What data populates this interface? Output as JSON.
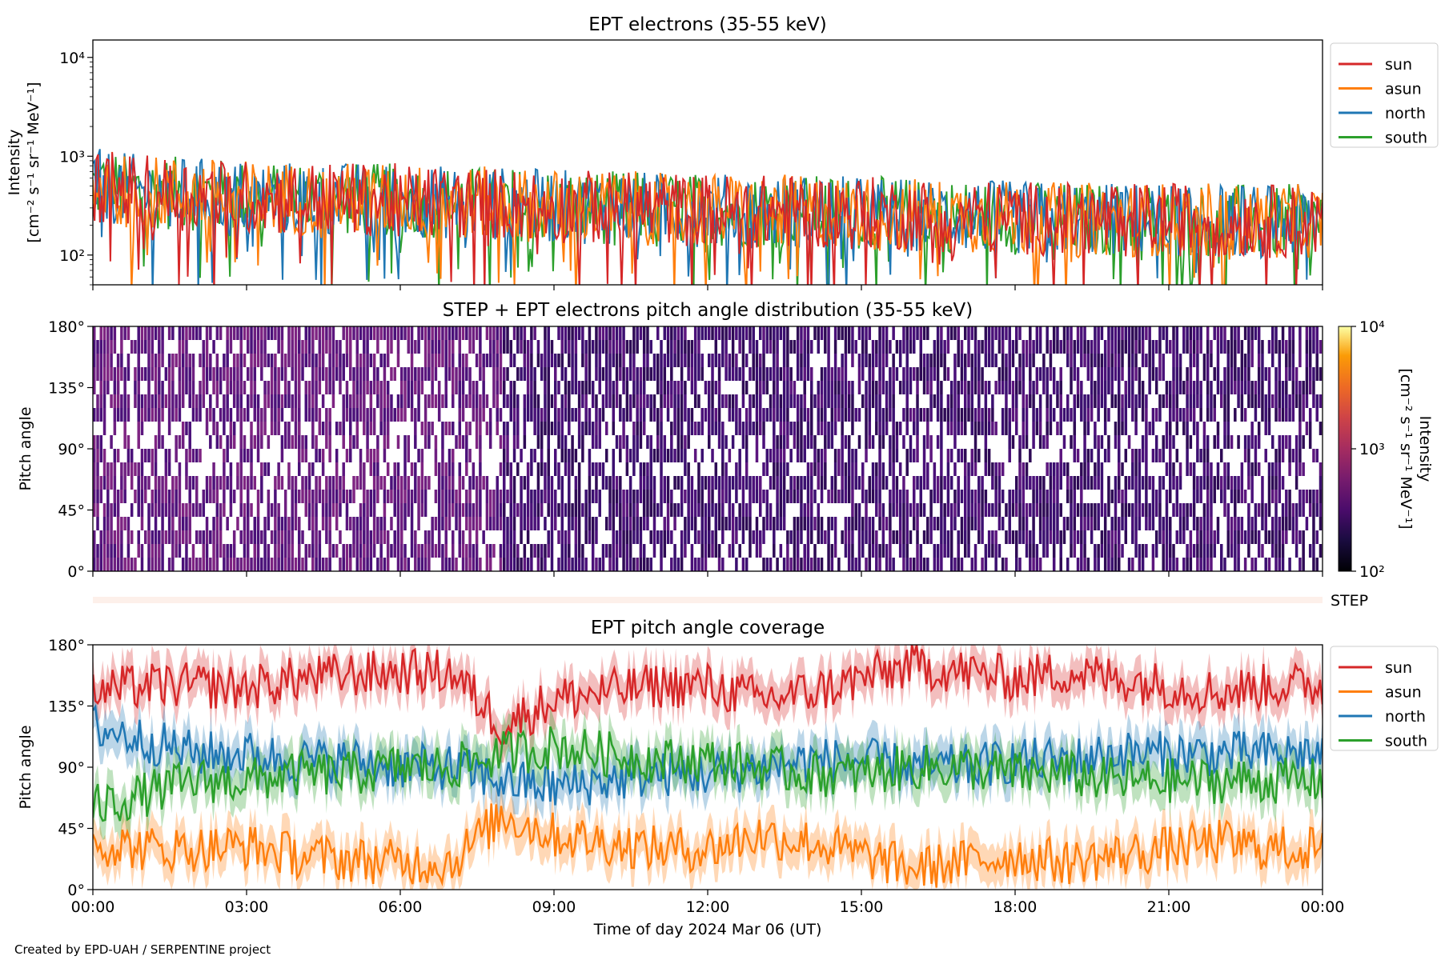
{
  "footer": {
    "credit": "Created by EPD-UAH / SERPENTINE project"
  },
  "colors": {
    "sun": "#d62728",
    "asun": "#ff7f0e",
    "north": "#1f77b4",
    "south": "#2ca02c"
  },
  "chart_data": [
    {
      "type": "line",
      "title": "EPT electrons (35-55 keV)",
      "ylabel": [
        "Intensity",
        "[cm⁻² s⁻¹ sr⁻¹ MeV⁻¹]"
      ],
      "yscale": "log",
      "ylim": [
        50,
        15000
      ],
      "yticks": [
        {
          "value": 100,
          "label": "10²"
        },
        {
          "value": 1000,
          "label": "10³"
        },
        {
          "value": 10000,
          "label": "10⁴"
        }
      ],
      "xlim_hours": [
        0,
        24
      ],
      "legend_position": "outside-right",
      "series": [
        {
          "name": "sun",
          "color": "#d62728",
          "hourly_level": [
            560,
            470,
            450,
            420,
            410,
            400,
            390,
            370,
            360,
            340,
            330,
            320,
            310,
            300,
            300,
            290,
            280,
            270,
            260,
            250,
            250,
            250,
            245,
            240,
            240
          ]
        },
        {
          "name": "asun",
          "color": "#ff7f0e",
          "hourly_level": [
            560,
            470,
            450,
            420,
            410,
            400,
            390,
            370,
            360,
            340,
            330,
            320,
            310,
            300,
            300,
            290,
            280,
            270,
            260,
            250,
            250,
            250,
            245,
            240,
            240
          ]
        },
        {
          "name": "north",
          "color": "#1f77b4",
          "hourly_level": [
            560,
            470,
            450,
            420,
            410,
            400,
            390,
            370,
            360,
            340,
            330,
            320,
            310,
            300,
            300,
            290,
            280,
            270,
            260,
            250,
            250,
            250,
            245,
            240,
            240
          ]
        },
        {
          "name": "south",
          "color": "#2ca02c",
          "hourly_level": [
            560,
            470,
            450,
            420,
            410,
            400,
            390,
            370,
            360,
            340,
            330,
            320,
            310,
            300,
            300,
            290,
            280,
            270,
            260,
            250,
            250,
            250,
            245,
            240,
            240
          ]
        }
      ]
    },
    {
      "type": "heatmap",
      "title": "STEP + EPT electrons pitch angle distribution (35-55 keV)",
      "ylabel": "Pitch angle",
      "ylim": [
        0,
        180
      ],
      "yticks": [
        "0°",
        "45°",
        "90°",
        "135°",
        "180°"
      ],
      "xlim_hours": [
        0,
        24
      ],
      "colorbar": {
        "label": [
          "Intensity",
          "[cm⁻² s⁻¹ sr⁻¹ MeV⁻¹]"
        ],
        "scale": "log",
        "range": [
          100,
          10000
        ],
        "ticks": [
          "10²",
          "10³",
          "10⁴"
        ],
        "colormap": "inferno"
      },
      "step_label": "STEP"
    },
    {
      "type": "line",
      "title": "EPT pitch angle coverage",
      "ylabel": "Pitch angle",
      "ylim": [
        0,
        180
      ],
      "yticks": [
        "0°",
        "45°",
        "90°",
        "135°",
        "180°"
      ],
      "xlim_hours": [
        0,
        24
      ],
      "xticks": [
        "00:00",
        "03:00",
        "06:00",
        "09:00",
        "12:00",
        "15:00",
        "18:00",
        "21:00",
        "00:00"
      ],
      "xlabel": "Time of day 2024 Mar 06 (UT)",
      "legend_position": "outside-right",
      "series": [
        {
          "name": "sun",
          "color": "#d62728",
          "hourly_mean_deg": [
            145,
            150,
            150,
            148,
            155,
            158,
            160,
            160,
            120,
            140,
            145,
            150,
            150,
            140,
            145,
            155,
            165,
            160,
            155,
            160,
            155,
            150,
            145,
            150,
            150
          ]
        },
        {
          "name": "asun",
          "color": "#ff7f0e",
          "hourly_mean_deg": [
            35,
            30,
            30,
            32,
            25,
            22,
            20,
            20,
            55,
            40,
            35,
            30,
            30,
            40,
            35,
            25,
            15,
            20,
            25,
            20,
            25,
            30,
            35,
            30,
            30
          ]
        },
        {
          "name": "north",
          "color": "#1f77b4",
          "hourly_mean_deg": [
            120,
            110,
            100,
            100,
            95,
            95,
            90,
            90,
            80,
            75,
            80,
            85,
            85,
            90,
            95,
            95,
            90,
            90,
            95,
            95,
            100,
            100,
            100,
            100,
            100
          ]
        },
        {
          "name": "south",
          "color": "#2ca02c",
          "hourly_mean_deg": [
            60,
            70,
            80,
            80,
            85,
            85,
            90,
            90,
            100,
            105,
            100,
            95,
            95,
            90,
            85,
            85,
            90,
            90,
            85,
            85,
            80,
            80,
            80,
            80,
            80
          ]
        }
      ]
    }
  ]
}
